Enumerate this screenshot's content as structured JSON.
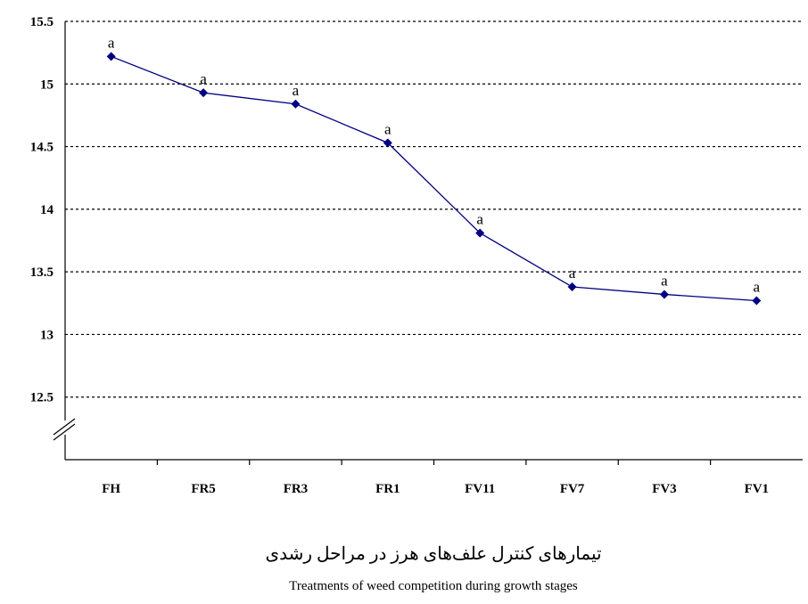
{
  "chart_data": {
    "type": "line",
    "title": "تیمارهای کنترل علف‌های هرز در مراحل رشدی",
    "subtitle": "Treatments of weed competition during growth stages",
    "categories": [
      "FH",
      "FR5",
      "FR3",
      "FR1",
      "FV11",
      "FV7",
      "FV3",
      "FV1"
    ],
    "series": [
      {
        "color": "#000080",
        "values": [
          15.22,
          14.93,
          14.84,
          14.53,
          13.81,
          13.38,
          13.32,
          13.27
        ],
        "letters": [
          "a",
          "a",
          "a",
          "a",
          "a",
          "a",
          "a",
          "a"
        ]
      }
    ],
    "ylim": [
      12,
      15.5
    ],
    "yticks": [
      12.5,
      13,
      13.5,
      14,
      14.5,
      15,
      15.5
    ],
    "grid": true
  }
}
